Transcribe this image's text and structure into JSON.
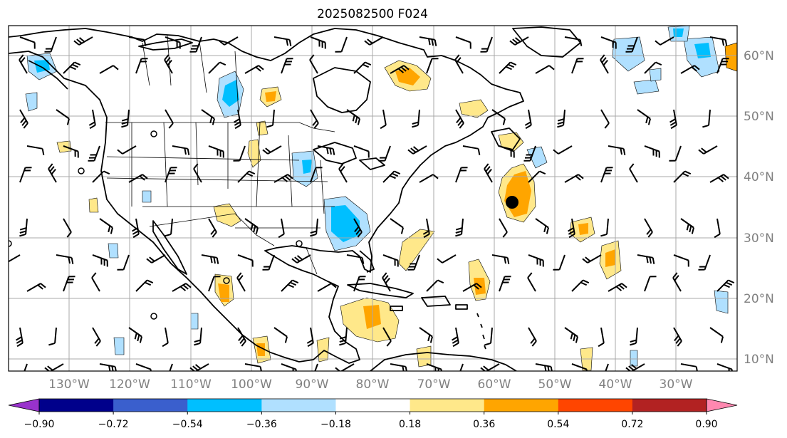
{
  "title": "2025082500 F024",
  "lon_labels": [
    "130°W",
    "120°W",
    "110°W",
    "100°W",
    "90°W",
    "80°W",
    "70°W",
    "60°W",
    "50°W",
    "40°W",
    "30°W"
  ],
  "lat_labels": [
    "60°N",
    "50°N",
    "40°N",
    "30°N",
    "20°N",
    "10°N"
  ],
  "colorbar": {
    "ticks": [
      "−0.90",
      "−0.72",
      "−0.54",
      "−0.36",
      "−0.18",
      "0.18",
      "0.36",
      "0.54",
      "0.72",
      "0.90"
    ],
    "colors": [
      "#9932cc",
      "#00008b",
      "#3a5fcd",
      "#00bfff",
      "#b0e0ff",
      "#ffffff",
      "#ffe88a",
      "#ffa500",
      "#ff4500",
      "#b22222",
      "#ff88b0"
    ]
  },
  "fill_colors": {
    "pos_low": "#ffe88a",
    "pos_mid": "#ffa500",
    "neg_low": "#b0e0ff",
    "neg_mid": "#00bfff"
  }
}
